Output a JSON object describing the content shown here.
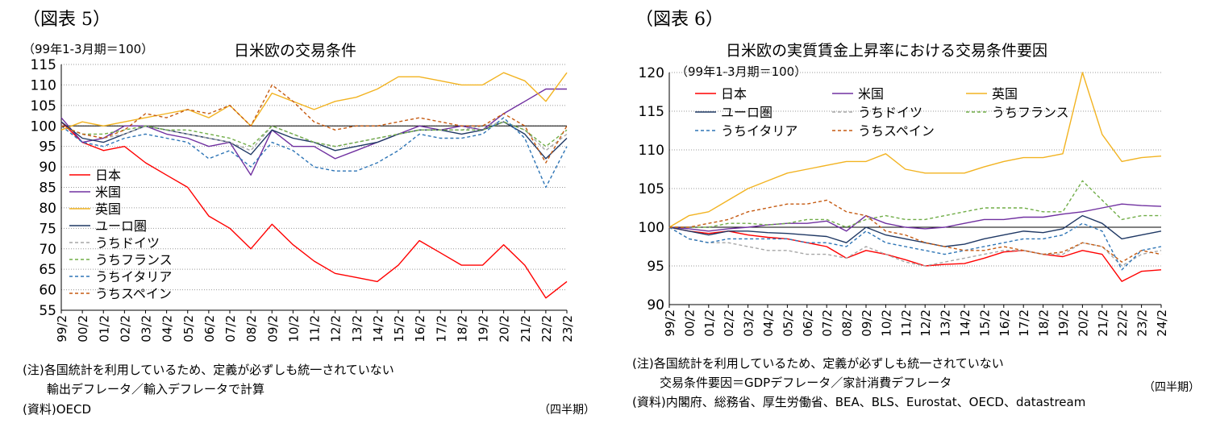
{
  "figures": {
    "left": {
      "fig_label": "（図表 5）",
      "title": "日米欧の交易条件",
      "unit": "（99年1-3月期＝100）",
      "notes": [
        "(注)各国統計を利用しているため、定義が必ずしも統一されていない",
        "輸出デフレータ／輸入デフレータで計算",
        "(資料)OECD"
      ],
      "period_label": "（四半期）"
    },
    "right": {
      "fig_label": "（図表 6）",
      "title": "日米欧の実質賃金上昇率における交易条件要因",
      "unit": "（99年1-3月期＝100）",
      "notes": [
        "(注)各国統計を利用しているため、定義が必ずしも統一されていない",
        "交易条件要因＝GDPデフレータ／家計消費デフレータ",
        "(資料)内閣府、総務省、厚生労働省、BEA、BLS、Eurostat、OECD、datastream"
      ],
      "period_label": "（四半期）"
    }
  },
  "chart_data": [
    {
      "type": "line",
      "title": "日米欧の交易条件",
      "ylabel": "（99年1-3月期＝100）",
      "xlabel": "（四半期）",
      "ylim": [
        55,
        115
      ],
      "yticks": [
        55,
        60,
        65,
        70,
        75,
        80,
        85,
        90,
        95,
        100,
        105,
        110,
        115
      ],
      "grid": true,
      "legend_position": "left",
      "x": [
        "99/2",
        "00/2",
        "01/2",
        "02/2",
        "03/2",
        "04/2",
        "05/2",
        "06/2",
        "07/2",
        "08/2",
        "09/2",
        "10/2",
        "11/2",
        "12/2",
        "13/2",
        "14/2",
        "15/2",
        "16/2",
        "17/2",
        "18/2",
        "19/2",
        "20/2",
        "21/2",
        "22/2",
        "23/2"
      ],
      "series": [
        {
          "name": "日本",
          "color": "#ff0000",
          "dash": "",
          "values": [
            101,
            96,
            94,
            95,
            91,
            88,
            85,
            78,
            75,
            70,
            76,
            71,
            67,
            64,
            63,
            62,
            66,
            72,
            69,
            66,
            66,
            71,
            66,
            58,
            62
          ]
        },
        {
          "name": "米国",
          "color": "#7030a0",
          "dash": "",
          "values": [
            102,
            96,
            97,
            100,
            100,
            98,
            97,
            95,
            96,
            88,
            99,
            95,
            95,
            92,
            94,
            96,
            98,
            100,
            99,
            100,
            99,
            103,
            106,
            109,
            109
          ]
        },
        {
          "name": "英国",
          "color": "#f2b321",
          "dash": "",
          "values": [
            99,
            101,
            100,
            101,
            102,
            103,
            104,
            102,
            105,
            100,
            108,
            106,
            104,
            106,
            107,
            109,
            112,
            112,
            111,
            110,
            110,
            113,
            111,
            106,
            113
          ]
        },
        {
          "name": "ユーロ圏",
          "color": "#1f3864",
          "dash": "",
          "values": [
            101,
            97,
            96,
            98,
            100,
            99,
            98,
            97,
            96,
            93,
            99,
            97,
            96,
            94,
            95,
            96,
            98,
            99,
            99,
            98,
            99,
            101,
            98,
            92,
            97
          ]
        },
        {
          "name": "うちドイツ",
          "color": "#a6a6a6",
          "dash": "4,3",
          "values": [
            100,
            98,
            97,
            98,
            100,
            99,
            98,
            97,
            96,
            94,
            100,
            98,
            96,
            95,
            96,
            97,
            98,
            99,
            99,
            99,
            100,
            101,
            99,
            94,
            98
          ]
        },
        {
          "name": "うちフランス",
          "color": "#70ad47",
          "dash": "4,3",
          "values": [
            100,
            98,
            98,
            99,
            100,
            99,
            99,
            98,
            97,
            95,
            100,
            98,
            96,
            95,
            96,
            97,
            98,
            99,
            99,
            99,
            99,
            101,
            99,
            95,
            99
          ]
        },
        {
          "name": "うちイタリア",
          "color": "#2e75b6",
          "dash": "4,3",
          "values": [
            100,
            96,
            95,
            97,
            98,
            97,
            96,
            92,
            94,
            90,
            96,
            94,
            90,
            89,
            89,
            91,
            94,
            98,
            97,
            97,
            98,
            102,
            97,
            85,
            95
          ]
        },
        {
          "name": "うちスペイン",
          "color": "#c55a11",
          "dash": "4,3",
          "values": [
            100,
            98,
            97,
            99,
            103,
            102,
            104,
            103,
            105,
            100,
            110,
            106,
            101,
            99,
            100,
            100,
            101,
            102,
            101,
            100,
            100,
            103,
            100,
            91,
            100
          ]
        }
      ]
    },
    {
      "type": "line",
      "title": "日米欧の実質賃金上昇率における交易条件要因",
      "ylabel": "（99年1-3月期＝100）",
      "xlabel": "（四半期）",
      "ylim": [
        90,
        120
      ],
      "yticks": [
        90,
        95,
        100,
        105,
        110,
        115,
        120
      ],
      "grid": true,
      "legend_position": "top-left",
      "x": [
        "99/2",
        "00/2",
        "01/2",
        "02/2",
        "03/2",
        "04/2",
        "05/2",
        "06/2",
        "07/2",
        "08/2",
        "09/2",
        "10/2",
        "11/2",
        "12/2",
        "13/2",
        "14/2",
        "15/2",
        "16/2",
        "17/2",
        "18/2",
        "19/2",
        "20/2",
        "21/2",
        "22/2",
        "23/2",
        "24/2"
      ],
      "series": [
        {
          "name": "日本",
          "color": "#ff0000",
          "dash": "",
          "values": [
            100,
            99.5,
            99.2,
            99.5,
            99,
            98.7,
            98.5,
            98,
            97.5,
            96,
            97,
            96.5,
            95.8,
            95,
            95.2,
            95.3,
            96,
            96.8,
            97,
            96.5,
            96.2,
            97,
            96.5,
            93,
            94.3,
            94.5
          ]
        },
        {
          "name": "米国",
          "color": "#7030a0",
          "dash": "",
          "values": [
            100,
            99.8,
            99.5,
            99.8,
            100,
            100.3,
            100.5,
            100.5,
            100.8,
            99.5,
            101.5,
            100.5,
            100,
            99.8,
            100,
            100.5,
            101,
            101,
            101.3,
            101.3,
            101.7,
            102,
            102.5,
            103,
            102.8,
            102.7
          ]
        },
        {
          "name": "英国",
          "color": "#f2b321",
          "dash": "",
          "values": [
            100,
            101.5,
            102,
            103.5,
            105,
            106,
            107,
            107.5,
            108,
            108.5,
            108.5,
            109.5,
            107.5,
            107,
            107,
            107,
            107.8,
            108.5,
            109,
            109,
            109.5,
            120,
            112,
            108.5,
            109,
            109.2
          ]
        },
        {
          "name": "ユーロ圏",
          "color": "#1f3864",
          "dash": "",
          "values": [
            100,
            99.5,
            99,
            99.5,
            99.5,
            99.3,
            99.2,
            99,
            98.8,
            98,
            100,
            99,
            98.5,
            98,
            97.5,
            97.8,
            98.5,
            99,
            99.5,
            99.3,
            99.8,
            101.5,
            100.5,
            98.5,
            99,
            99.5
          ]
        },
        {
          "name": "うちドイツ",
          "color": "#a6a6a6",
          "dash": "4,3",
          "values": [
            100,
            98.5,
            98,
            98,
            97.5,
            97,
            97,
            96.5,
            96.5,
            96,
            97.5,
            96.5,
            95.5,
            95,
            95.5,
            96,
            96.5,
            97,
            97,
            96.5,
            96.5,
            98,
            97.5,
            95,
            96.5,
            97
          ]
        },
        {
          "name": "うちフランス",
          "color": "#70ad47",
          "dash": "4,3",
          "values": [
            100,
            100,
            100,
            100.5,
            100.5,
            100.3,
            100.5,
            101,
            101,
            100,
            101,
            101.5,
            101,
            101,
            101.5,
            102,
            102.5,
            102.5,
            102.5,
            102,
            102,
            106,
            103.5,
            101,
            101.5,
            101.5
          ]
        },
        {
          "name": "うちイタリア",
          "color": "#2e75b6",
          "dash": "4,3",
          "values": [
            100,
            98.5,
            98,
            98.5,
            98.5,
            98.5,
            98.5,
            98,
            98,
            97.5,
            99.5,
            98,
            97.5,
            97,
            96.5,
            97,
            97.5,
            98,
            98.5,
            98.5,
            99,
            100.5,
            99.5,
            94.5,
            97,
            97.5
          ]
        },
        {
          "name": "うちスペイン",
          "color": "#c55a11",
          "dash": "4,3",
          "values": [
            100,
            100,
            100.5,
            101,
            102,
            102.5,
            103,
            103,
            103.5,
            102,
            101.5,
            99.5,
            99,
            98,
            97.5,
            97,
            97,
            97.5,
            97,
            96.5,
            96.8,
            98,
            97.5,
            95.5,
            97,
            96.5
          ]
        }
      ]
    }
  ]
}
